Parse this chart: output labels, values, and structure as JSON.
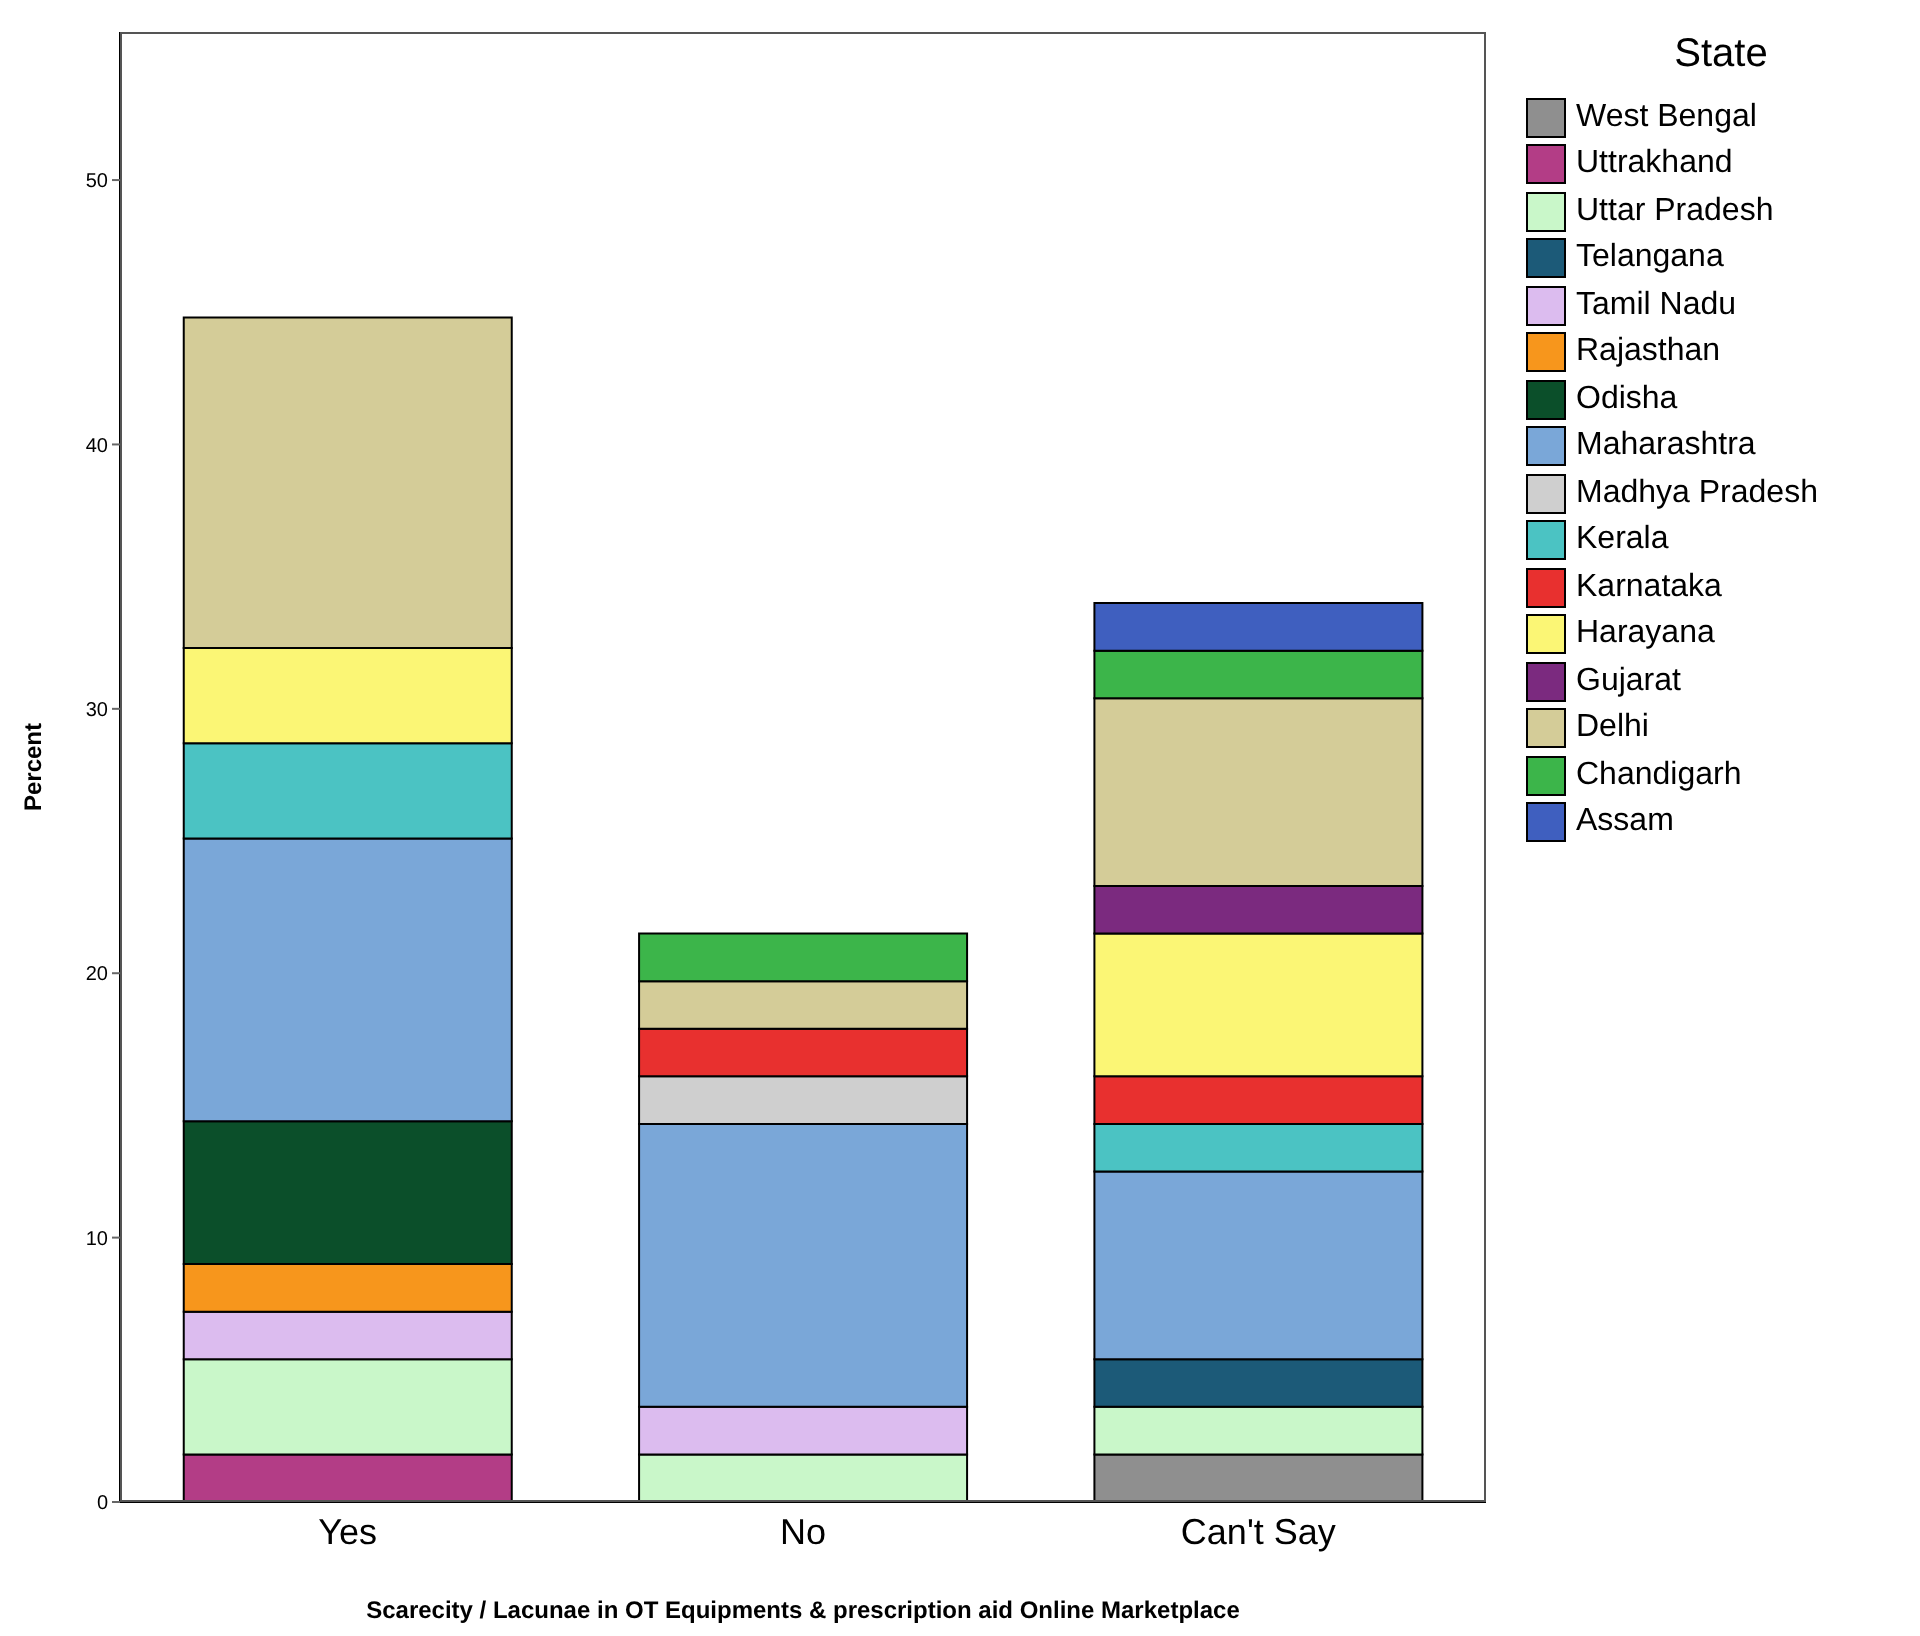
{
  "chart_data": {
    "type": "bar",
    "stacked": true,
    "xlabel": "Scarecity / Lacunae in OT Equipments & prescription aid Online Marketplace",
    "ylabel": "Percent",
    "legend_title": "State",
    "legend": "right",
    "grid": false,
    "categories": [
      "Yes",
      "No",
      "Can't Say"
    ],
    "ylim": [
      0,
      55.6
    ],
    "yticks": [
      0,
      10,
      20,
      30,
      40,
      50
    ],
    "series": [
      {
        "name": "West Bengal",
        "color": "#8f8f8f",
        "values": [
          null,
          null,
          1.8
        ]
      },
      {
        "name": "Uttrakhand",
        "color": "#b33d86",
        "values": [
          1.8,
          null,
          null
        ]
      },
      {
        "name": "Uttar Pradesh",
        "color": "#c9f7c9",
        "values": [
          3.6,
          1.8,
          1.8
        ]
      },
      {
        "name": "Telangana",
        "color": "#1c5a78",
        "values": [
          null,
          null,
          1.8
        ]
      },
      {
        "name": "Tamil Nadu",
        "color": "#dcbcef",
        "values": [
          1.8,
          1.8,
          null
        ]
      },
      {
        "name": "Rajasthan",
        "color": "#f7961c",
        "values": [
          1.8,
          null,
          null
        ]
      },
      {
        "name": "Odisha",
        "color": "#0b4f2a",
        "values": [
          5.4,
          null,
          null
        ]
      },
      {
        "name": "Maharashtra",
        "color": "#7aa7d8",
        "values": [
          10.7,
          10.7,
          7.1
        ]
      },
      {
        "name": "Madhya Pradesh",
        "color": "#cfcfcf",
        "values": [
          null,
          1.8,
          null
        ]
      },
      {
        "name": "Kerala",
        "color": "#4bc3c3",
        "values": [
          3.6,
          null,
          1.8
        ]
      },
      {
        "name": "Karnataka",
        "color": "#e8302f",
        "values": [
          null,
          1.8,
          1.8
        ]
      },
      {
        "name": "Harayana",
        "color": "#fbf675",
        "values": [
          3.6,
          null,
          5.4
        ]
      },
      {
        "name": "Gujarat",
        "color": "#7b2a7f",
        "values": [
          null,
          null,
          1.8
        ]
      },
      {
        "name": "Delhi",
        "color": "#d4cc98",
        "values": [
          12.5,
          1.8,
          7.1
        ]
      },
      {
        "name": "Chandigarh",
        "color": "#3cb54a",
        "values": [
          null,
          1.8,
          1.8
        ]
      },
      {
        "name": "Assam",
        "color": "#3f5fbf",
        "values": [
          null,
          null,
          1.8
        ]
      }
    ]
  }
}
